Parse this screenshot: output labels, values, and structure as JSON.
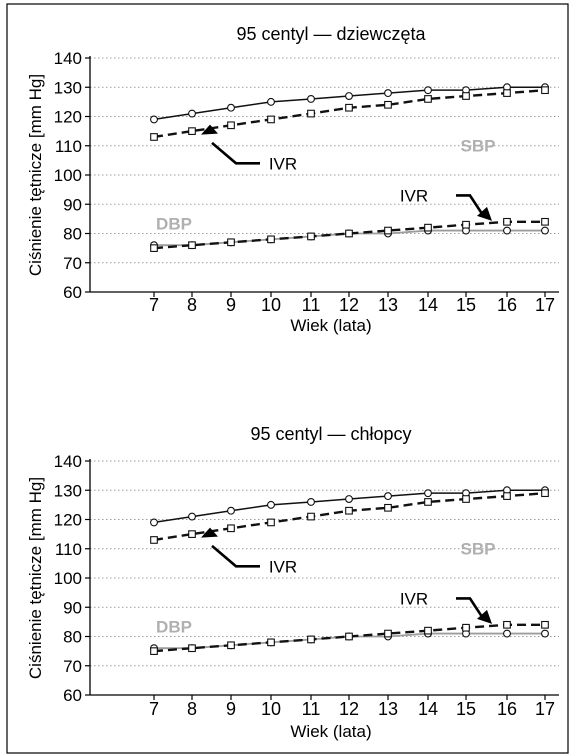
{
  "chart_data": [
    {
      "type": "line",
      "title": "95 centyl — dziewczęta",
      "xlabel": "Wiek  (lata)",
      "ylabel": "Ciśnienie tętnicze [mm Hg]",
      "x": [
        7,
        8,
        9,
        10,
        11,
        12,
        13,
        14,
        15,
        16,
        17
      ],
      "ylim": [
        60,
        140
      ],
      "yticks": [
        60,
        70,
        80,
        90,
        100,
        110,
        120,
        130,
        140
      ],
      "grid": true,
      "series": [
        {
          "group": "SBP",
          "style": "solid-circle",
          "values": [
            119,
            121,
            123,
            125,
            126,
            127,
            128,
            129,
            129,
            130,
            130
          ]
        },
        {
          "group": "SBP",
          "style": "dashed-square",
          "values": [
            113,
            115,
            117,
            119,
            121,
            123,
            124,
            126,
            127,
            128,
            129
          ]
        },
        {
          "group": "DBP",
          "style": "solid-circle",
          "values": [
            76,
            76,
            77,
            78,
            79,
            80,
            80,
            81,
            81,
            81,
            81
          ]
        },
        {
          "group": "DBP",
          "style": "dashed-square",
          "values": [
            75,
            76,
            77,
            78,
            79,
            80,
            81,
            82,
            83,
            84,
            84
          ]
        }
      ],
      "annotations": {
        "sbp_label": "SBP",
        "dbp_label": "DBP",
        "ivr_upper": "IVR",
        "ivr_lower": "IVR"
      }
    },
    {
      "type": "line",
      "title": "95 centyl — chłopcy",
      "xlabel": "Wiek  (lata)",
      "ylabel": "Ciśnienie tętnicze [mm Hg]",
      "x": [
        7,
        8,
        9,
        10,
        11,
        12,
        13,
        14,
        15,
        16,
        17
      ],
      "ylim": [
        60,
        140
      ],
      "yticks": [
        60,
        70,
        80,
        90,
        100,
        110,
        120,
        130,
        140
      ],
      "grid": true,
      "series": [
        {
          "group": "SBP",
          "style": "solid-circle",
          "values": [
            119,
            121,
            123,
            125,
            126,
            127,
            128,
            129,
            129,
            130,
            130
          ]
        },
        {
          "group": "SBP",
          "style": "dashed-square",
          "values": [
            113,
            115,
            117,
            119,
            121,
            123,
            124,
            126,
            127,
            128,
            129
          ]
        },
        {
          "group": "DBP",
          "style": "solid-circle",
          "values": [
            76,
            76,
            77,
            78,
            79,
            80,
            80,
            81,
            81,
            81,
            81
          ]
        },
        {
          "group": "DBP",
          "style": "dashed-square",
          "values": [
            75,
            76,
            77,
            78,
            79,
            80,
            81,
            82,
            83,
            84,
            84
          ]
        }
      ],
      "annotations": {
        "sbp_label": "SBP",
        "dbp_label": "DBP",
        "ivr_upper": "IVR",
        "ivr_lower": "IVR"
      }
    }
  ],
  "colors": {
    "axis": "#000000",
    "grid": "#9a9a9a",
    "series_dark": "#111111",
    "series_gray": "#9c9c9c",
    "label_gray": "#b0b0b0"
  }
}
